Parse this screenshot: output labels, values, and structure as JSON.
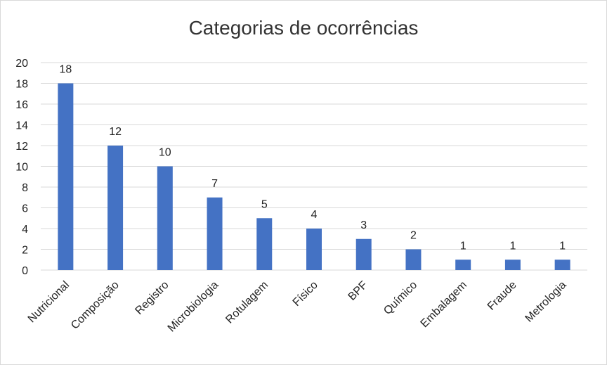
{
  "chart_data": {
    "type": "bar",
    "title": "Categorias de ocorrências",
    "categories": [
      "Nutricional",
      "Composição",
      "Registro",
      "Microbiologia",
      "Rotulagem",
      "Físico",
      "BPF",
      "Químico",
      "Embalagem",
      "Fraude",
      "Metrologia"
    ],
    "values": [
      18,
      12,
      10,
      7,
      5,
      4,
      3,
      2,
      1,
      1,
      1
    ],
    "xlabel": "",
    "ylabel": "",
    "ylim": [
      0,
      20
    ],
    "yticks": [
      0,
      2,
      4,
      6,
      8,
      10,
      12,
      14,
      16,
      18,
      20
    ],
    "grid": true,
    "bar_color": "#4472c4",
    "grid_color": "#d9d9d9",
    "data_labels": true
  }
}
